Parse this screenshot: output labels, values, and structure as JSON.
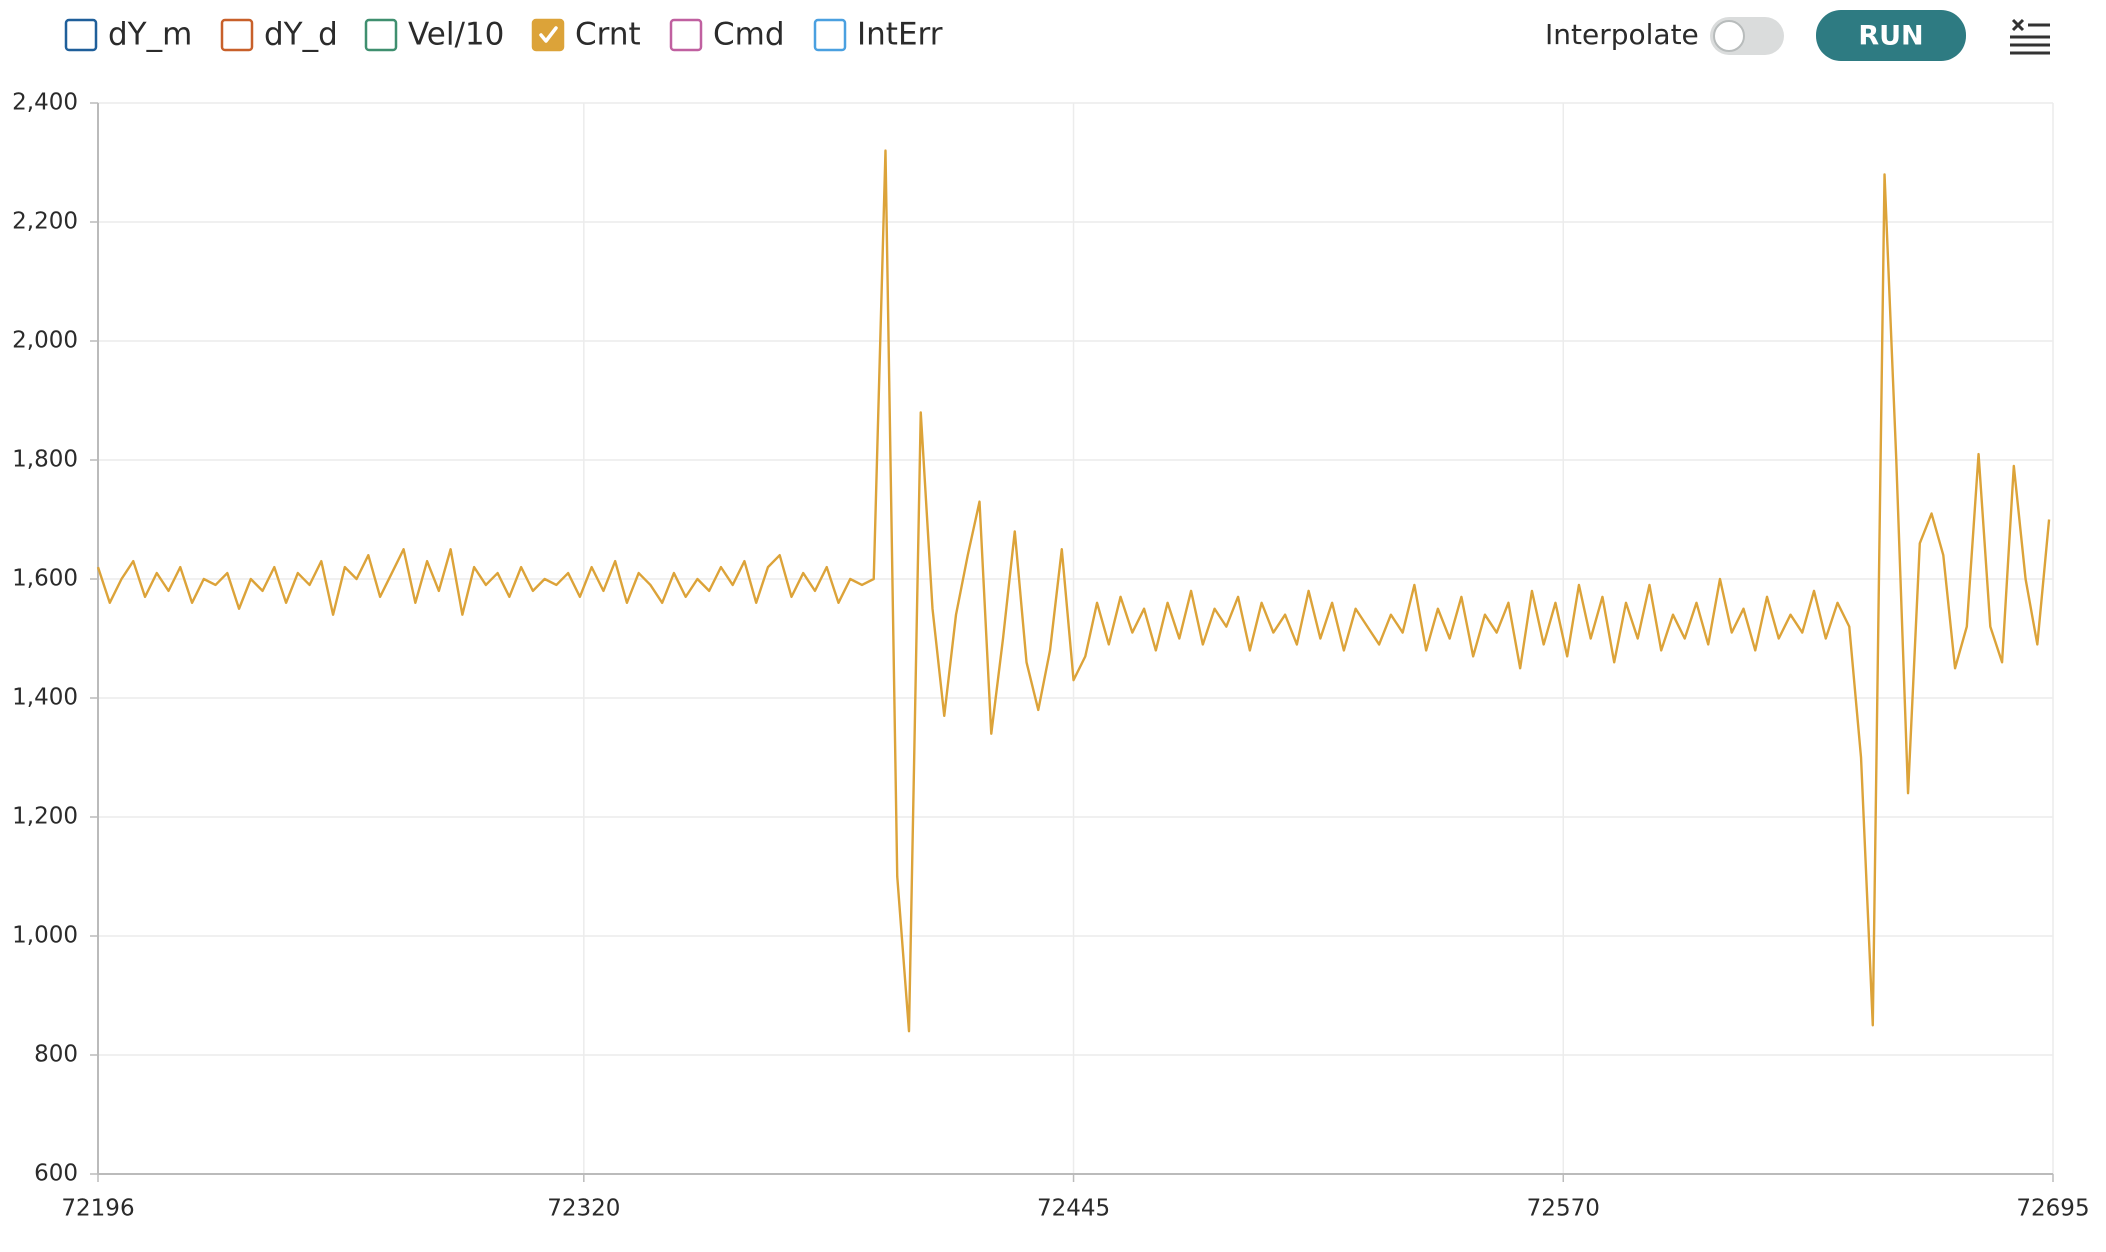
{
  "toolbar": {
    "interpolate_label": "Interpolate",
    "interpolate": false,
    "run_button": "RUN"
  },
  "chart_data": {
    "type": "line",
    "series": [
      {
        "name": "dY_m",
        "color": "#1f5f9a",
        "checked": false
      },
      {
        "name": "dY_d",
        "color": "#c8602a",
        "checked": false
      },
      {
        "name": "Vel/10",
        "color": "#3f8f6f",
        "checked": false
      },
      {
        "name": "Crnt",
        "color": "#dca339",
        "checked": true,
        "values": [
          1620,
          1560,
          1600,
          1630,
          1570,
          1610,
          1580,
          1620,
          1560,
          1600,
          1590,
          1610,
          1550,
          1600,
          1580,
          1620,
          1560,
          1610,
          1590,
          1630,
          1540,
          1620,
          1600,
          1640,
          1570,
          1610,
          1650,
          1560,
          1630,
          1580,
          1650,
          1540,
          1620,
          1590,
          1610,
          1570,
          1620,
          1580,
          1600,
          1590,
          1610,
          1570,
          1620,
          1580,
          1630,
          1560,
          1610,
          1590,
          1560,
          1610,
          1570,
          1600,
          1580,
          1620,
          1590,
          1630,
          1560,
          1620,
          1640,
          1570,
          1610,
          1580,
          1620,
          1560,
          1600,
          1590,
          1600,
          2320,
          1100,
          840,
          1880,
          1550,
          1370,
          1540,
          1640,
          1730,
          1340,
          1500,
          1680,
          1460,
          1380,
          1480,
          1650,
          1430,
          1470,
          1560,
          1490,
          1570,
          1510,
          1550,
          1480,
          1560,
          1500,
          1580,
          1490,
          1550,
          1520,
          1570,
          1480,
          1560,
          1510,
          1540,
          1490,
          1580,
          1500,
          1560,
          1480,
          1550,
          1520,
          1490,
          1540,
          1510,
          1590,
          1480,
          1550,
          1500,
          1570,
          1470,
          1540,
          1510,
          1560,
          1450,
          1580,
          1490,
          1560,
          1470,
          1590,
          1500,
          1570,
          1460,
          1560,
          1500,
          1590,
          1480,
          1540,
          1500,
          1560,
          1490,
          1600,
          1510,
          1550,
          1480,
          1570,
          1500,
          1540,
          1510,
          1580,
          1500,
          1560,
          1520,
          1300,
          850,
          2280,
          1800,
          1240,
          1660,
          1710,
          1640,
          1450,
          1520,
          1810,
          1520,
          1460,
          1790,
          1600,
          1490,
          1700
        ]
      },
      {
        "name": "Cmd",
        "color": "#c060a0",
        "checked": false
      },
      {
        "name": "IntErr",
        "color": "#4aa0e0",
        "checked": false
      }
    ],
    "x": [
      72196,
      72199,
      72202,
      72205,
      72208,
      72211,
      72214,
      72217,
      72220,
      72223,
      72226,
      72229,
      72232,
      72235,
      72238,
      72241,
      72244,
      72247,
      72250,
      72253,
      72256,
      72259,
      72262,
      72265,
      72268,
      72271,
      72274,
      72277,
      72280,
      72283,
      72286,
      72289,
      72292,
      72295,
      72298,
      72301,
      72304,
      72307,
      72310,
      72313,
      72316,
      72319,
      72322,
      72325,
      72328,
      72331,
      72334,
      72337,
      72340,
      72343,
      72346,
      72349,
      72352,
      72355,
      72358,
      72361,
      72364,
      72367,
      72370,
      72373,
      72376,
      72379,
      72382,
      72385,
      72388,
      72391,
      72394,
      72397,
      72400,
      72403,
      72406,
      72409,
      72412,
      72415,
      72418,
      72421,
      72424,
      72427,
      72430,
      72433,
      72436,
      72439,
      72442,
      72445,
      72448,
      72451,
      72454,
      72457,
      72460,
      72463,
      72466,
      72469,
      72472,
      72475,
      72478,
      72481,
      72484,
      72487,
      72490,
      72493,
      72496,
      72499,
      72502,
      72505,
      72508,
      72511,
      72514,
      72517,
      72520,
      72523,
      72526,
      72529,
      72532,
      72535,
      72538,
      72541,
      72544,
      72547,
      72550,
      72553,
      72556,
      72559,
      72562,
      72565,
      72568,
      72571,
      72574,
      72577,
      72580,
      72583,
      72586,
      72589,
      72592,
      72595,
      72598,
      72601,
      72604,
      72607,
      72610,
      72613,
      72616,
      72619,
      72622,
      72625,
      72628,
      72631,
      72634,
      72637,
      72640,
      72643,
      72646,
      72649,
      72652,
      72655,
      72658,
      72661,
      72664,
      72667,
      72670,
      72673,
      72676,
      72679,
      72682,
      72685,
      72688,
      72691,
      72694
    ],
    "xlim": [
      72196,
      72695
    ],
    "xticks": [
      72196,
      72320,
      72445,
      72570,
      72695
    ],
    "ylim": [
      600,
      2400
    ],
    "yticks": [
      {
        "value": 600,
        "label": "600"
      },
      {
        "value": 800,
        "label": "800"
      },
      {
        "value": 1000,
        "label": "1,000"
      },
      {
        "value": 1200,
        "label": "1,200"
      },
      {
        "value": 1400,
        "label": "1,400"
      },
      {
        "value": 1600,
        "label": "1,600"
      },
      {
        "value": 1800,
        "label": "1,800"
      },
      {
        "value": 2000,
        "label": "2,000"
      },
      {
        "value": 2200,
        "label": "2,200"
      },
      {
        "value": 2400,
        "label": "2,400"
      }
    ],
    "grid": true
  }
}
